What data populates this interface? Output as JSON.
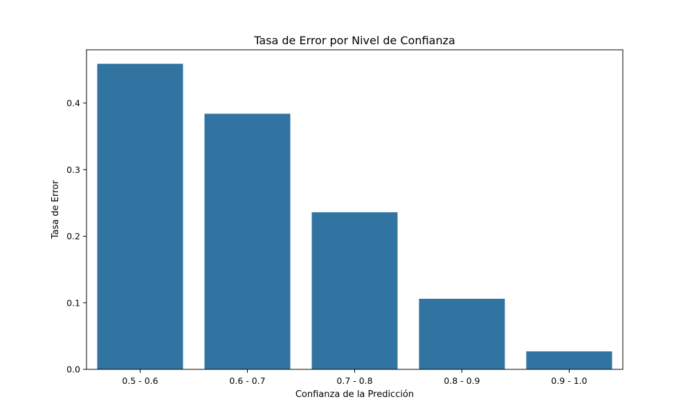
{
  "chart_data": {
    "type": "bar",
    "title": "Tasa de Error por Nivel de Confianza",
    "xlabel": "Confianza de la Predicción",
    "ylabel": "Tasa de Error",
    "categories": [
      "0.5 - 0.6",
      "0.6 - 0.7",
      "0.7 - 0.8",
      "0.8 - 0.9",
      "0.9 - 1.0"
    ],
    "values": [
      0.459,
      0.384,
      0.236,
      0.106,
      0.027
    ],
    "ylim": [
      0,
      0.48
    ],
    "yticks": [
      "0.0",
      "0.1",
      "0.2",
      "0.3",
      "0.4"
    ],
    "bar_color": "#3274a1",
    "grid": false,
    "legend": "none"
  }
}
